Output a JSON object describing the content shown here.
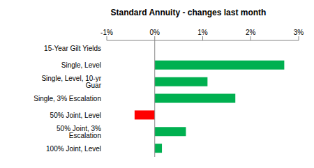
{
  "chart_data": {
    "type": "bar",
    "title": "Standard Annuity - changes last month",
    "orientation": "horizontal",
    "categories": [
      "15-Year Gilt Yields",
      "Single, Level",
      "Single, Level, 10-yr Guar",
      "Single, 3% Escalation",
      "50% Joint, Level",
      "50% Joint, 3% Escalation",
      "100% Joint, Level"
    ],
    "values": [
      0,
      2.7,
      1.1,
      1.68,
      -0.42,
      0.65,
      0.15
    ],
    "colors": [
      "#00B050",
      "#00B050",
      "#00B050",
      "#00B050",
      "#FF0000",
      "#00B050",
      "#00B050"
    ],
    "xlim": [
      -1,
      3
    ],
    "xticks": [
      {
        "value": -1,
        "label": "-1%"
      },
      {
        "value": 0,
        "label": "0%"
      },
      {
        "value": 1,
        "label": "1%"
      },
      {
        "value": 2,
        "label": "2%"
      },
      {
        "value": 3,
        "label": "3%"
      }
    ],
    "grid": false
  }
}
